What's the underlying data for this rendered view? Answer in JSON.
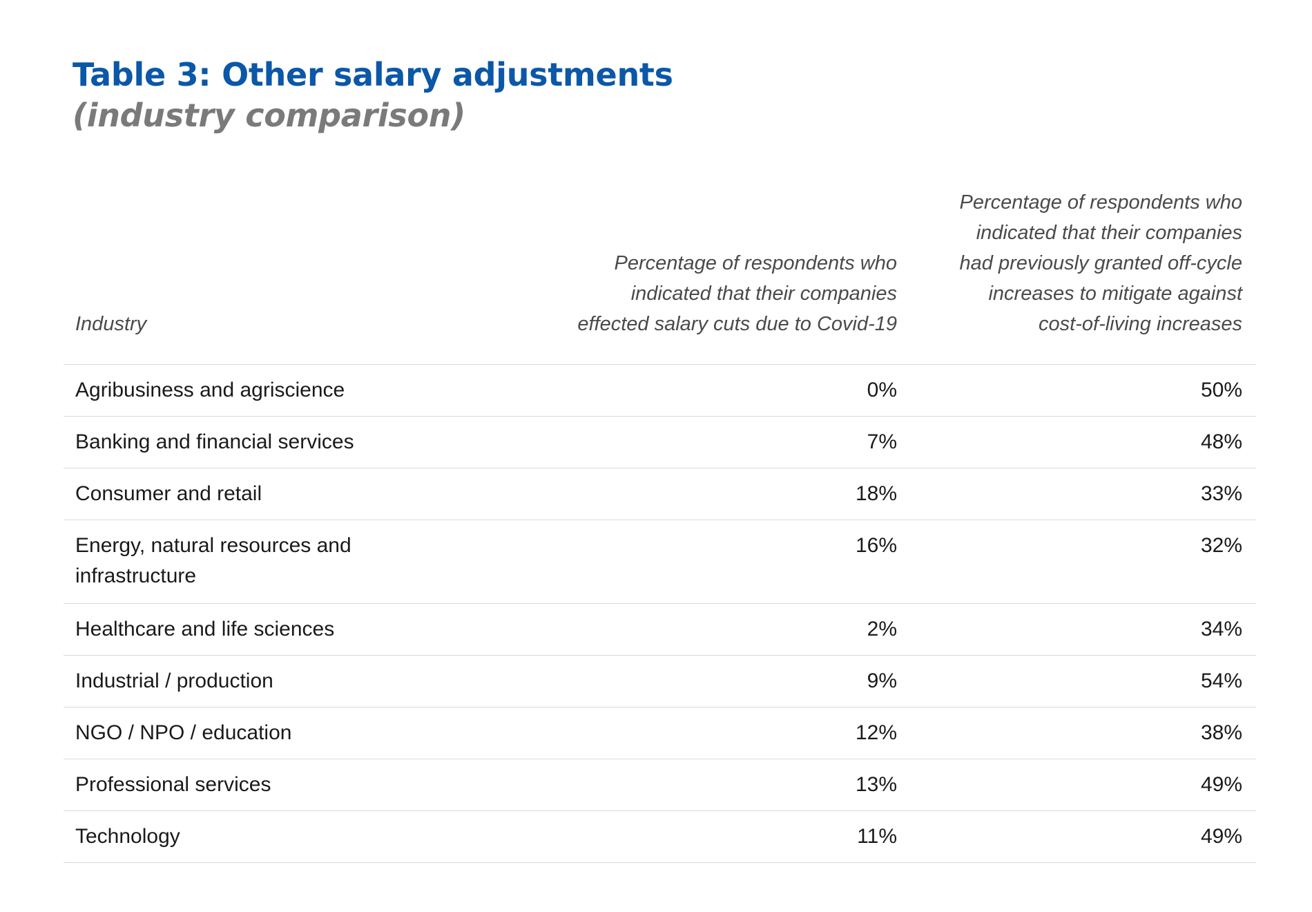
{
  "title": "Table 3: Other salary adjustments",
  "subtitle": "(industry comparison)",
  "colors": {
    "title": "#0b57a8",
    "subtitle": "#7a7a7a",
    "rule": "#d9d9d9"
  },
  "table": {
    "headers": {
      "industry": "Industry",
      "col_a_lines": [
        "Percentage of respondents who",
        "indicated that their companies",
        "effected salary cuts due to Covid-19"
      ],
      "col_b_lines": [
        "Percentage of respondents who",
        "indicated that their companies",
        "had previously granted off-cycle",
        "increases to mitigate against",
        "cost-of-living increases"
      ]
    },
    "rows": [
      {
        "industry_lines": [
          "Agribusiness and agriscience"
        ],
        "salary_cuts": "0%",
        "off_cycle": "50%"
      },
      {
        "industry_lines": [
          "Banking and financial services"
        ],
        "salary_cuts": "7%",
        "off_cycle": "48%"
      },
      {
        "industry_lines": [
          "Consumer and retail"
        ],
        "salary_cuts": "18%",
        "off_cycle": "33%"
      },
      {
        "industry_lines": [
          "Energy, natural resources and",
          "infrastructure"
        ],
        "salary_cuts": "16%",
        "off_cycle": "32%"
      },
      {
        "industry_lines": [
          "Healthcare and life sciences"
        ],
        "salary_cuts": "2%",
        "off_cycle": "34%"
      },
      {
        "industry_lines": [
          "Industrial / production"
        ],
        "salary_cuts": "9%",
        "off_cycle": "54%"
      },
      {
        "industry_lines": [
          "NGO / NPO / education"
        ],
        "salary_cuts": "12%",
        "off_cycle": "38%"
      },
      {
        "industry_lines": [
          "Professional services"
        ],
        "salary_cuts": "13%",
        "off_cycle": "49%"
      },
      {
        "industry_lines": [
          "Technology"
        ],
        "salary_cuts": "11%",
        "off_cycle": "49%"
      }
    ]
  }
}
